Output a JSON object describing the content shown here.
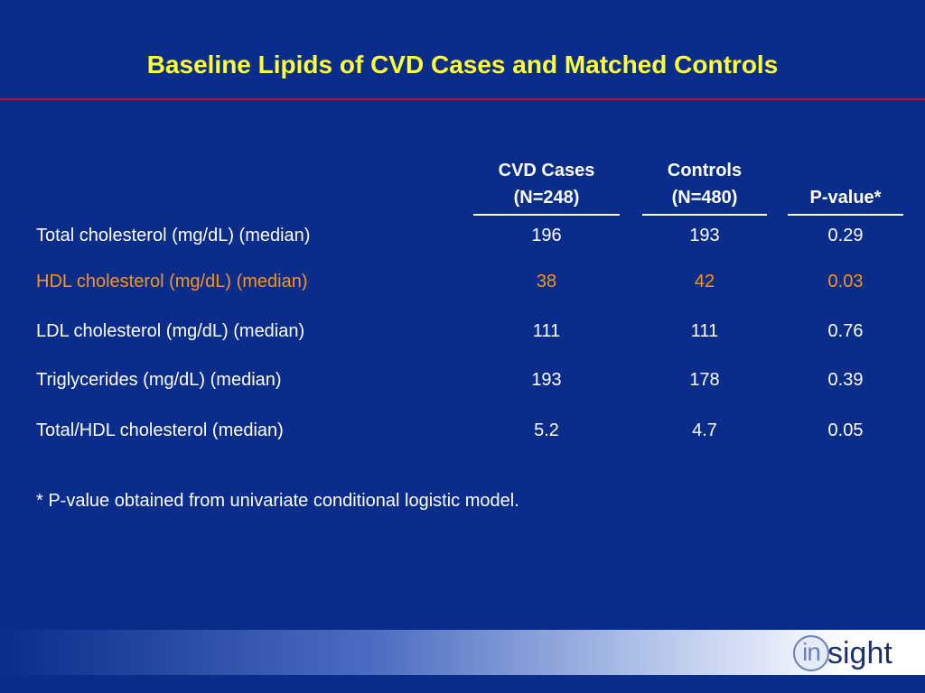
{
  "title": "Baseline Lipids of CVD Cases and Matched Controls",
  "columns": [
    {
      "line1": "CVD Cases",
      "line2": "(N=248)"
    },
    {
      "line1": "Controls",
      "line2": "(N=480)"
    },
    {
      "line1": "",
      "line2": "P-value*"
    }
  ],
  "rows": [
    {
      "label": "Total cholesterol (mg/dL) (median)",
      "cases": "196",
      "controls": "193",
      "p": "0.29"
    },
    {
      "label": "HDL cholesterol (mg/dL) (median)",
      "cases": "38",
      "controls": "42",
      "p": "0.03"
    },
    {
      "label": "LDL cholesterol (mg/dL) (median)",
      "cases": "111",
      "controls": "111",
      "p": "0.76"
    },
    {
      "label": "Triglycerides (mg/dL) (median)",
      "cases": "193",
      "controls": "178",
      "p": "0.39"
    },
    {
      "label": "Total/HDL cholesterol (median)",
      "cases": "5.2",
      "controls": "4.7",
      "p": "0.05"
    }
  ],
  "footnote": "* P-value obtained from univariate conditional logistic model.",
  "logo": {
    "ring_text": "in",
    "rest_text": "sight"
  },
  "colors": {
    "background": "#0a2d8c",
    "title": "#ffff33",
    "title_rule": "#c0142a",
    "highlight": "#f7941d",
    "text": "#ffffff"
  }
}
